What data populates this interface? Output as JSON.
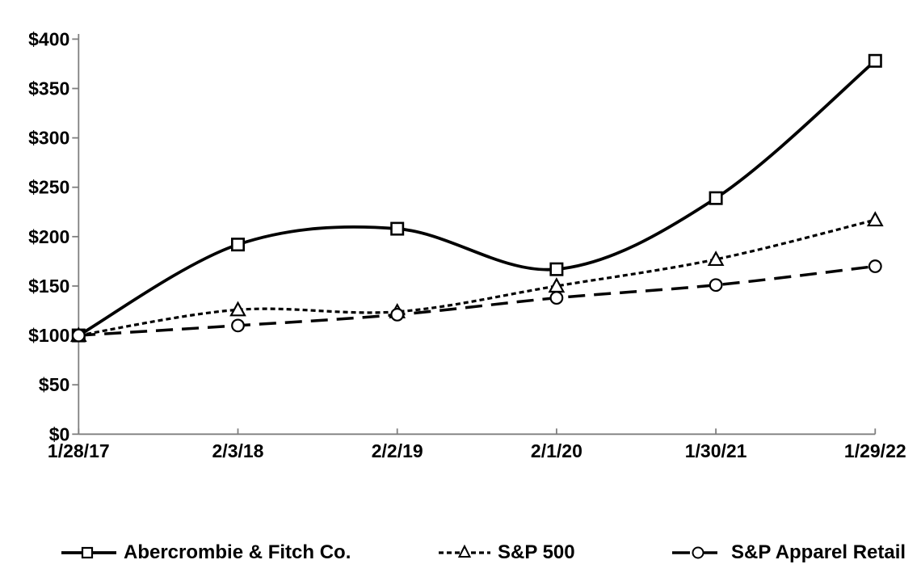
{
  "chart_data": {
    "type": "line",
    "title": "",
    "xlabel": "",
    "ylabel": "",
    "categories": [
      "1/28/17",
      "2/3/18",
      "2/2/19",
      "2/1/20",
      "1/30/21",
      "1/29/22"
    ],
    "series": [
      {
        "name": "Abercrombie & Fitch Co.",
        "values": [
          100,
          192,
          208,
          167,
          239,
          378
        ],
        "line_style": "solid",
        "marker": "square"
      },
      {
        "name": "S&P 500",
        "values": [
          100,
          126,
          124,
          150,
          177,
          217
        ],
        "line_style": "dotted",
        "marker": "triangle"
      },
      {
        "name": "S&P Apparel Retail",
        "values": [
          100,
          110,
          121,
          138,
          151,
          170
        ],
        "line_style": "long-dash",
        "marker": "circle"
      }
    ],
    "y_axis": {
      "min": 0,
      "max": 400,
      "step": 50,
      "tick_labels": [
        "$0",
        "$50",
        "$100",
        "$150",
        "$200",
        "$250",
        "$300",
        "$350",
        "$400"
      ]
    },
    "x_axis": {
      "tick_labels": [
        "1/28/17",
        "2/3/18",
        "2/2/19",
        "2/1/20",
        "1/30/21",
        "1/29/22"
      ]
    },
    "grid": false,
    "smooth_lines": true,
    "legend_position": "bottom",
    "colors": {
      "series": "#000000",
      "marker_fill": "#ffffff",
      "axis": "#7f7f7f",
      "text": "#000000",
      "background": "#ffffff"
    }
  }
}
